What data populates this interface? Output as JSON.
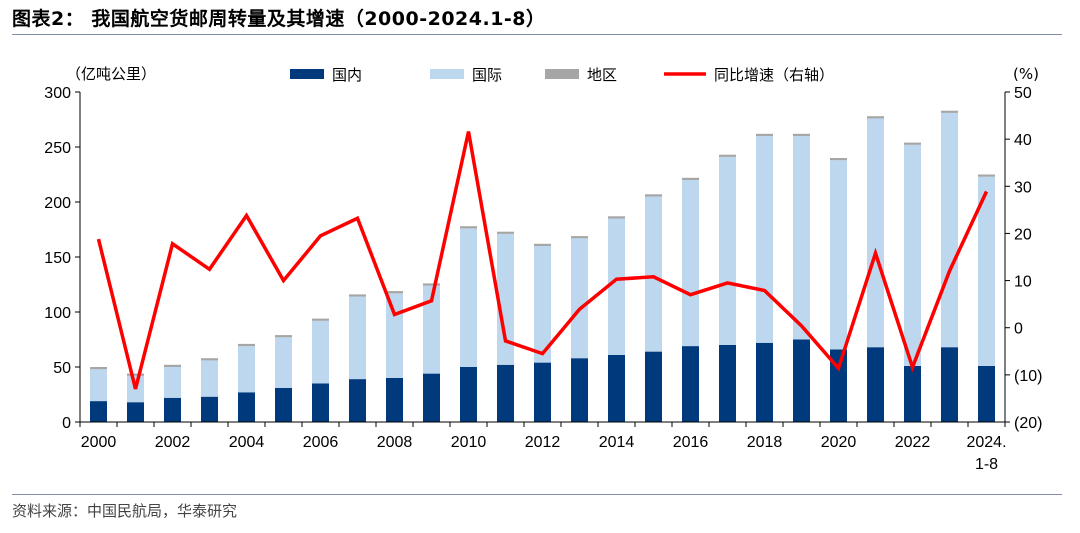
{
  "header": {
    "title": "图表2：  我国航空货邮周转量及其增速（2000-2024.1-8）",
    "source": "资料来源：中国民航局，华泰研究"
  },
  "chart_data": {
    "type": "bar",
    "stacked": true,
    "categories": [
      "2000",
      "2001",
      "2002",
      "2003",
      "2004",
      "2005",
      "2006",
      "2007",
      "2008",
      "2009",
      "2010",
      "2011",
      "2012",
      "2013",
      "2014",
      "2015",
      "2016",
      "2017",
      "2018",
      "2019",
      "2020",
      "2021",
      "2022",
      "2023",
      "2024.1-8"
    ],
    "x_tick_labels": [
      "2000",
      "2002",
      "2004",
      "2006",
      "2008",
      "2010",
      "2012",
      "2014",
      "2016",
      "2018",
      "2020",
      "2022",
      "2024.\n1-8"
    ],
    "left_unit": "（亿吨公里）",
    "right_unit": "(%)",
    "ylim_left": [
      0,
      300
    ],
    "yticks_left": [
      "0",
      "50",
      "100",
      "150",
      "200",
      "250",
      "300"
    ],
    "ylim_right": [
      -20,
      50
    ],
    "yticks_right": [
      "(20)",
      "(10)",
      "0",
      "10",
      "20",
      "30",
      "40",
      "50"
    ],
    "legend_position": "top",
    "series": [
      {
        "name": "国内",
        "color": "#003a7d",
        "axis": "left",
        "values": [
          19,
          18,
          22,
          23,
          27,
          31,
          35,
          39,
          40,
          44,
          50,
          52,
          54,
          58,
          61,
          64,
          69,
          70,
          72,
          75,
          66,
          68,
          51,
          68,
          51
        ]
      },
      {
        "name": "国际",
        "color": "#bdd7ee",
        "axis": "left",
        "values": [
          29,
          24,
          28,
          33,
          42,
          46,
          57,
          75,
          77,
          80,
          126,
          119,
          106,
          109,
          124,
          141,
          151,
          171,
          188,
          185,
          172,
          208,
          201,
          213,
          172
        ]
      },
      {
        "name": "地区",
        "color": "#a6a6a6",
        "axis": "left",
        "values": [
          2,
          2,
          2,
          2,
          2,
          2,
          2,
          2,
          2,
          2,
          2,
          2,
          2,
          2,
          2,
          2,
          2,
          2,
          2,
          2,
          2,
          2,
          2,
          2,
          2
        ]
      },
      {
        "name": "同比增速（右轴）",
        "color": "#ff0000",
        "axis": "right",
        "type": "line",
        "values": [
          18.8,
          -13.0,
          17.8,
          12.4,
          23.8,
          10.0,
          19.5,
          23.2,
          2.8,
          5.7,
          41.6,
          -2.8,
          -5.5,
          3.9,
          10.3,
          10.8,
          7.0,
          9.5,
          7.9,
          0.4,
          -8.6,
          15.8,
          -8.4,
          12.0,
          28.9
        ]
      }
    ]
  }
}
